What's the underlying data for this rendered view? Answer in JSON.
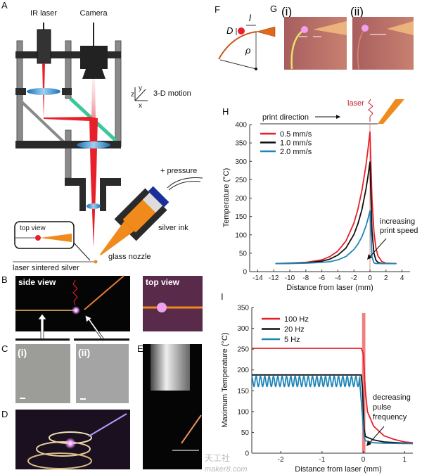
{
  "panels": {
    "A": "A",
    "B": "B",
    "C": "C",
    "D": "D",
    "E": "E",
    "F": "F",
    "G": "G",
    "H": "H",
    "I": "I"
  },
  "diagram_a": {
    "ir_laser": "IR laser",
    "camera": "Camera",
    "motion": "3-D motion",
    "axis_x": "x",
    "axis_y": "y",
    "axis_z": "z",
    "pressure": "+ pressure",
    "silver_ink": "silver ink",
    "glass_nozzle": "glass nozzle",
    "sintered": "laser sintered silver",
    "top_view": "top view"
  },
  "photos": {
    "b_side": "side view",
    "b_top": "top view",
    "c_i": "(i)",
    "c_ii": "(ii)"
  },
  "diagram_f": {
    "D": "D",
    "l": "l",
    "rho": "ρ"
  },
  "photos_g": {
    "i": "(i)",
    "ii": "(ii)"
  },
  "colors": {
    "red": "#e8202a",
    "black": "#111111",
    "blue": "#1f86b8",
    "orange": "#f08a1c",
    "laser_band": "#f08080"
  },
  "chart_data": [
    {
      "type": "line",
      "title": "",
      "xlabel": "Distance from laser (mm)",
      "ylabel": "Temperature (°C)",
      "xlim": [
        -15,
        5
      ],
      "ylim": [
        0,
        400
      ],
      "xticks": [
        -14,
        -12,
        -10,
        -8,
        -6,
        -4,
        -2,
        0,
        2,
        4
      ],
      "yticks": [
        0,
        50,
        100,
        150,
        200,
        250,
        300,
        350,
        400
      ],
      "grid": false,
      "legend": "top-left",
      "schematic": {
        "print_direction": "print direction",
        "laser": "laser"
      },
      "annotation": [
        "increasing",
        "print speed"
      ],
      "x": [
        -11.8,
        -10,
        -8,
        -6,
        -5,
        -4,
        -3,
        -2,
        -1.5,
        -1,
        -0.5,
        -0.25,
        0,
        0.25,
        0.5,
        0.75,
        1,
        1.5,
        2,
        3.3
      ],
      "series": [
        {
          "name": "0.5 mm/s",
          "color": "#e8202a",
          "values": [
            22,
            23,
            25,
            32,
            41,
            56,
            83,
            132,
            170,
            221,
            289,
            331,
            380,
            197,
            108,
            64,
            43,
            27,
            23,
            22
          ]
        },
        {
          "name": "1.0 mm/s",
          "color": "#111111",
          "values": [
            22,
            22.5,
            24,
            28.5,
            34,
            45,
            64,
            101,
            130,
            169,
            224,
            258,
            298,
            110,
            50,
            31,
            25,
            22,
            22,
            22
          ]
        },
        {
          "name": "2.0 mm/s",
          "color": "#1f86b8",
          "values": [
            22,
            22,
            23,
            25,
            27,
            32,
            41,
            60,
            75,
            95,
            124,
            143,
            165,
            40,
            24,
            22,
            22,
            22,
            22,
            22
          ]
        }
      ]
    },
    {
      "type": "line",
      "title": "",
      "xlabel": "Distance from laser (mm)",
      "ylabel": "Maximum Temperature (°C)",
      "xlim": [
        -2.7,
        1.2
      ],
      "ylim": [
        0,
        350
      ],
      "xticks": [
        -2,
        -1,
        0,
        1
      ],
      "yticks": [
        0,
        50,
        100,
        150,
        200,
        250,
        300,
        350
      ],
      "grid": false,
      "legend": "top-left",
      "annotation": [
        "decreasing",
        "pulse",
        "frequency"
      ],
      "laser_band": [
        -0.03,
        0.05
      ],
      "series": [
        {
          "name": "100 Hz",
          "color": "#e8202a",
          "x": [
            -2.7,
            -0.05,
            0,
            0.05,
            0.1,
            0.25,
            0.5,
            0.75,
            1,
            1.2
          ],
          "values": [
            252,
            252,
            240,
            150,
            100,
            65,
            42,
            33,
            27,
            25
          ]
        },
        {
          "name": "20 Hz",
          "color": "#111111",
          "x": [
            -2.7,
            -0.05,
            -0.02,
            0.02,
            0.05,
            0.25,
            0.5,
            1,
            1.2
          ],
          "values": [
            188,
            188,
            155,
            60,
            40,
            32,
            27,
            24,
            23
          ]
        },
        {
          "name": "5 Hz",
          "color": "#1f86b8",
          "oscillation": {
            "x_range": [
              -2.7,
              -0.08
            ],
            "min": 160,
            "max": 185,
            "period": 0.105
          },
          "x": [
            -0.08,
            -0.03,
            0.02,
            0.05,
            0.25,
            0.5,
            1,
            1.2
          ],
          "values": [
            165,
            100,
            40,
            30,
            25,
            24,
            23,
            23
          ]
        }
      ]
    }
  ],
  "watermark": {
    "line1": "天工社",
    "line2": "maker8.com"
  }
}
